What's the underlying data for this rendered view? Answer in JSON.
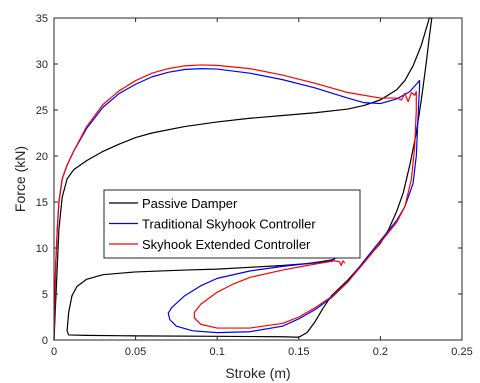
{
  "chart_data": {
    "type": "line",
    "xlabel": "Stroke (m)",
    "ylabel": "Force (kN)",
    "xlim": [
      0,
      0.25
    ],
    "ylim": [
      0,
      35
    ],
    "x_ticks": [
      0,
      0.05,
      0.1,
      0.15,
      0.2,
      0.25
    ],
    "x_tick_labels": [
      "0",
      "0.05",
      "0.1",
      "0.15",
      "0.2",
      "0.25"
    ],
    "y_ticks": [
      0,
      5,
      10,
      15,
      20,
      25,
      30,
      35
    ],
    "y_tick_labels": [
      "0",
      "5",
      "10",
      "15",
      "20",
      "25",
      "30",
      "35"
    ],
    "grid": false,
    "legend_position": "center-left",
    "series": [
      {
        "name": "Passive Damper",
        "color": "#000000",
        "points": [
          [
            0.0,
            0.0
          ],
          [
            0.001,
            4.0
          ],
          [
            0.002,
            8.0
          ],
          [
            0.003,
            12.0
          ],
          [
            0.005,
            15.5
          ],
          [
            0.008,
            17.5
          ],
          [
            0.012,
            18.5
          ],
          [
            0.02,
            19.5
          ],
          [
            0.03,
            20.5
          ],
          [
            0.04,
            21.3
          ],
          [
            0.05,
            22.0
          ],
          [
            0.06,
            22.5
          ],
          [
            0.08,
            23.2
          ],
          [
            0.1,
            23.7
          ],
          [
            0.12,
            24.1
          ],
          [
            0.14,
            24.4
          ],
          [
            0.16,
            24.7
          ],
          [
            0.18,
            25.1
          ],
          [
            0.19,
            25.5
          ],
          [
            0.2,
            26.1
          ],
          [
            0.21,
            27.2
          ],
          [
            0.215,
            28.2
          ],
          [
            0.22,
            29.8
          ],
          [
            0.225,
            32.0
          ],
          [
            0.228,
            33.8
          ],
          [
            0.23,
            35.0
          ],
          [
            0.2315,
            35.0
          ],
          [
            0.23,
            33.0
          ],
          [
            0.228,
            30.0
          ],
          [
            0.225,
            26.0
          ],
          [
            0.222,
            22.5
          ],
          [
            0.218,
            19.0
          ],
          [
            0.214,
            16.0
          ],
          [
            0.21,
            14.0
          ],
          [
            0.205,
            12.0
          ],
          [
            0.2,
            10.5
          ],
          [
            0.19,
            8.5
          ],
          [
            0.18,
            6.5
          ],
          [
            0.17,
            4.8
          ],
          [
            0.165,
            3.5
          ],
          [
            0.16,
            2.0
          ],
          [
            0.155,
            0.8
          ],
          [
            0.15,
            0.3
          ],
          [
            0.14,
            0.35
          ],
          [
            0.1,
            0.4
          ],
          [
            0.05,
            0.45
          ],
          [
            0.02,
            0.5
          ],
          [
            0.009,
            0.55
          ],
          [
            0.008,
            1.0
          ],
          [
            0.009,
            3.0
          ],
          [
            0.011,
            4.8
          ],
          [
            0.014,
            5.8
          ],
          [
            0.02,
            6.6
          ],
          [
            0.03,
            7.1
          ],
          [
            0.05,
            7.4
          ],
          [
            0.08,
            7.6
          ],
          [
            0.1,
            7.7
          ],
          [
            0.12,
            7.9
          ],
          [
            0.14,
            8.1
          ],
          [
            0.155,
            8.3
          ],
          [
            0.165,
            8.55
          ],
          [
            0.17,
            8.7
          ],
          [
            0.172,
            8.8
          ]
        ]
      },
      {
        "name": "Traditional Skyhook Controller",
        "color": "#0000ff",
        "points": [
          [
            0.0,
            0.0
          ],
          [
            0.0005,
            4.0
          ],
          [
            0.001,
            8.0
          ],
          [
            0.002,
            12.0
          ],
          [
            0.003,
            15.0
          ],
          [
            0.005,
            17.5
          ],
          [
            0.008,
            19.0
          ],
          [
            0.012,
            20.5
          ],
          [
            0.02,
            23.0
          ],
          [
            0.03,
            25.3
          ],
          [
            0.04,
            26.8
          ],
          [
            0.05,
            27.8
          ],
          [
            0.06,
            28.6
          ],
          [
            0.07,
            29.1
          ],
          [
            0.08,
            29.4
          ],
          [
            0.09,
            29.5
          ],
          [
            0.1,
            29.45
          ],
          [
            0.12,
            29.0
          ],
          [
            0.14,
            28.3
          ],
          [
            0.16,
            27.4
          ],
          [
            0.18,
            26.3
          ],
          [
            0.19,
            25.8
          ],
          [
            0.2,
            25.7
          ],
          [
            0.21,
            26.2
          ],
          [
            0.218,
            27.0
          ],
          [
            0.222,
            27.8
          ],
          [
            0.224,
            28.2
          ],
          [
            0.224,
            27.5
          ],
          [
            0.223,
            24.0
          ],
          [
            0.222,
            20.0
          ],
          [
            0.22,
            17.0
          ],
          [
            0.215,
            14.5
          ],
          [
            0.21,
            13.0
          ],
          [
            0.2,
            10.8
          ],
          [
            0.19,
            8.6
          ],
          [
            0.18,
            6.3
          ],
          [
            0.17,
            4.6
          ],
          [
            0.16,
            3.3
          ],
          [
            0.15,
            2.3
          ],
          [
            0.14,
            1.5
          ],
          [
            0.12,
            0.9
          ],
          [
            0.1,
            0.8
          ],
          [
            0.085,
            1.0
          ],
          [
            0.075,
            1.5
          ],
          [
            0.071,
            2.2
          ],
          [
            0.07,
            2.9
          ],
          [
            0.072,
            3.5
          ],
          [
            0.08,
            4.8
          ],
          [
            0.09,
            5.9
          ],
          [
            0.1,
            6.7
          ],
          [
            0.12,
            7.5
          ],
          [
            0.14,
            8.0
          ],
          [
            0.155,
            8.3
          ],
          [
            0.165,
            8.45
          ],
          [
            0.17,
            8.6
          ],
          [
            0.172,
            8.9
          ],
          [
            0.174,
            9.0
          ]
        ]
      },
      {
        "name": "Skyhook Extended Controller",
        "color": "#ff0000",
        "points": [
          [
            0.0,
            0.0
          ],
          [
            0.0005,
            4.0
          ],
          [
            0.001,
            8.0
          ],
          [
            0.002,
            12.0
          ],
          [
            0.003,
            15.0
          ],
          [
            0.005,
            17.5
          ],
          [
            0.008,
            19.0
          ],
          [
            0.012,
            20.5
          ],
          [
            0.02,
            23.2
          ],
          [
            0.03,
            25.6
          ],
          [
            0.04,
            27.1
          ],
          [
            0.05,
            28.2
          ],
          [
            0.06,
            29.0
          ],
          [
            0.07,
            29.5
          ],
          [
            0.08,
            29.8
          ],
          [
            0.09,
            29.9
          ],
          [
            0.1,
            29.85
          ],
          [
            0.12,
            29.5
          ],
          [
            0.14,
            28.8
          ],
          [
            0.16,
            27.9
          ],
          [
            0.18,
            26.9
          ],
          [
            0.2,
            26.3
          ],
          [
            0.21,
            26.3
          ],
          [
            0.213,
            26.1
          ],
          [
            0.215,
            26.8
          ],
          [
            0.217,
            25.9
          ],
          [
            0.219,
            26.9
          ],
          [
            0.221,
            26.6
          ],
          [
            0.222,
            27.0
          ],
          [
            0.222,
            25.0
          ],
          [
            0.221,
            21.0
          ],
          [
            0.219,
            17.5
          ],
          [
            0.215,
            14.5
          ],
          [
            0.21,
            12.8
          ],
          [
            0.2,
            10.6
          ],
          [
            0.19,
            8.4
          ],
          [
            0.18,
            6.3
          ],
          [
            0.17,
            4.7
          ],
          [
            0.16,
            3.5
          ],
          [
            0.15,
            2.5
          ],
          [
            0.14,
            1.8
          ],
          [
            0.12,
            1.3
          ],
          [
            0.1,
            1.3
          ],
          [
            0.09,
            1.7
          ],
          [
            0.086,
            2.4
          ],
          [
            0.086,
            3.0
          ],
          [
            0.09,
            3.9
          ],
          [
            0.1,
            5.2
          ],
          [
            0.11,
            6.1
          ],
          [
            0.12,
            6.8
          ],
          [
            0.14,
            7.6
          ],
          [
            0.155,
            8.1
          ],
          [
            0.165,
            8.4
          ],
          [
            0.172,
            8.6
          ],
          [
            0.175,
            8.5
          ],
          [
            0.176,
            8.1
          ],
          [
            0.177,
            8.6
          ],
          [
            0.178,
            8.4
          ]
        ]
      }
    ]
  }
}
